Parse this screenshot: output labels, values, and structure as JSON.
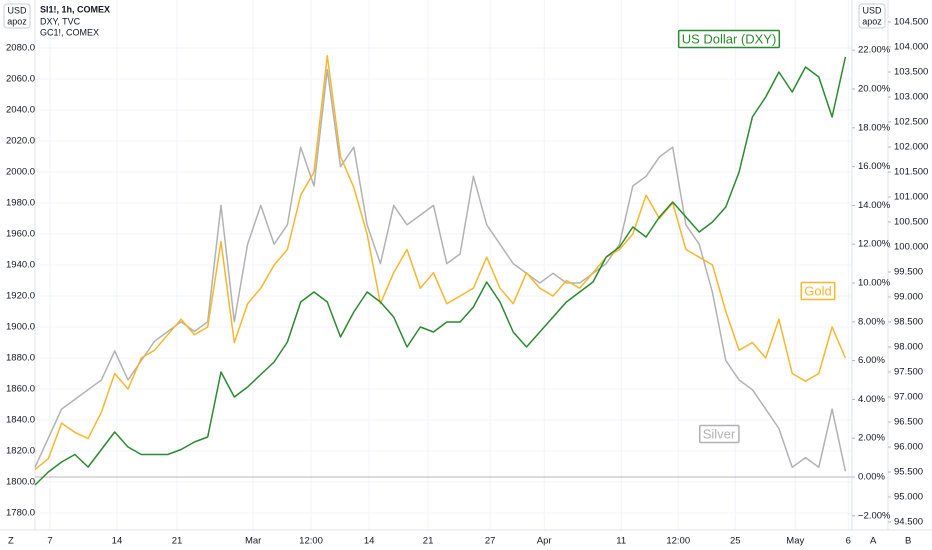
{
  "chart_data": {
    "type": "line",
    "legend_lines": [
      "SI1!, 1h, COMEX",
      "DXY, TVC",
      "GC1!, COMEX"
    ],
    "scale_labels": [
      "USD",
      "apoz"
    ],
    "corner_labels": [
      "Z",
      "A",
      "B"
    ],
    "x": [
      0,
      1,
      2,
      3,
      4,
      5,
      6,
      7,
      8,
      9,
      10,
      11,
      12,
      13,
      14,
      15,
      16,
      17,
      18,
      19,
      20,
      21,
      22,
      23,
      24,
      25,
      26,
      27,
      28,
      29,
      30,
      31,
      32,
      33,
      34,
      35,
      36,
      37,
      38,
      39,
      40,
      41,
      42,
      43,
      44,
      45,
      46,
      47,
      48,
      49,
      50,
      51,
      52,
      53,
      54,
      55,
      56,
      57,
      58,
      59,
      60,
      61
    ],
    "xlim": [
      0,
      61.5
    ],
    "xticks": [
      {
        "value": 1.13,
        "label": "7"
      },
      {
        "value": 6.17,
        "label": "14"
      },
      {
        "value": 10.69,
        "label": "21"
      },
      {
        "value": 16.42,
        "label": "Mar"
      },
      {
        "value": 20.78,
        "label": "12:00"
      },
      {
        "value": 25.15,
        "label": "14"
      },
      {
        "value": 29.59,
        "label": "21"
      },
      {
        "value": 34.26,
        "label": "27"
      },
      {
        "value": 38.33,
        "label": "Apr"
      },
      {
        "value": 44.13,
        "label": "11"
      },
      {
        "value": 48.42,
        "label": "12:00"
      },
      {
        "value": 52.71,
        "label": "25"
      },
      {
        "value": 57.23,
        "label": "May"
      },
      {
        "value": 61.22,
        "label": "6"
      }
    ],
    "ylim": [
      1769,
      2104.5
    ],
    "yticks": [
      {
        "value": 1780,
        "label": "1780.0"
      },
      {
        "value": 1800,
        "label": "1800.0"
      },
      {
        "value": 1820,
        "label": "1820.0"
      },
      {
        "value": 1840,
        "label": "1840.0"
      },
      {
        "value": 1860,
        "label": "1860.0"
      },
      {
        "value": 1880,
        "label": "1880.0"
      },
      {
        "value": 1900,
        "label": "1900.0"
      },
      {
        "value": 1920,
        "label": "1920.0"
      },
      {
        "value": 1940,
        "label": "1940.0"
      },
      {
        "value": 1960,
        "label": "1960.0"
      },
      {
        "value": 1980,
        "label": "1980.0"
      },
      {
        "value": 2000,
        "label": "2000.0"
      },
      {
        "value": 2020,
        "label": "2020.0"
      },
      {
        "value": 2040,
        "label": "2040.0"
      },
      {
        "value": 2060,
        "label": "2060.0"
      },
      {
        "value": 2080,
        "label": "2080.0"
      }
    ],
    "y2lim": [
      -2.73,
      24.07
    ],
    "y2ticks": [
      {
        "value": -2,
        "label": "−2.00%"
      },
      {
        "value": 0,
        "label": "0.00%"
      },
      {
        "value": 2,
        "label": "2.00%"
      },
      {
        "value": 4,
        "label": "4.00%"
      },
      {
        "value": 6,
        "label": "6.00%"
      },
      {
        "value": 8,
        "label": "8.00%"
      },
      {
        "value": 10,
        "label": "10.00%"
      },
      {
        "value": 12,
        "label": "12.00%"
      },
      {
        "value": 14,
        "label": "14.00%"
      },
      {
        "value": 16,
        "label": "16.00%"
      },
      {
        "value": 18,
        "label": "18.00%"
      },
      {
        "value": 20,
        "label": "20.00%"
      },
      {
        "value": 22,
        "label": "22.00%"
      }
    ],
    "y3lim": [
      94.34,
      104.74
    ],
    "y3ticks": [
      {
        "value": 94.5,
        "label": "94.500"
      },
      {
        "value": 95,
        "label": "95.000"
      },
      {
        "value": 95.5,
        "label": "95.500"
      },
      {
        "value": 96,
        "label": "96.000"
      },
      {
        "value": 96.5,
        "label": "96.500"
      },
      {
        "value": 97,
        "label": "97.000"
      },
      {
        "value": 97.5,
        "label": "97.500"
      },
      {
        "value": 98,
        "label": "98.000"
      },
      {
        "value": 98.5,
        "label": "98.500"
      },
      {
        "value": 99,
        "label": "99.000"
      },
      {
        "value": 99.5,
        "label": "99.500"
      },
      {
        "value": 100,
        "label": "100.000"
      },
      {
        "value": 100.5,
        "label": "100.500"
      },
      {
        "value": 101,
        "label": "101.000"
      },
      {
        "value": 101.5,
        "label": "101.500"
      },
      {
        "value": 102,
        "label": "102.000"
      },
      {
        "value": 102.5,
        "label": "102.500"
      },
      {
        "value": 103,
        "label": "103.000"
      },
      {
        "value": 103.5,
        "label": "103.500"
      },
      {
        "value": 104,
        "label": "104.000"
      },
      {
        "value": 104.5,
        "label": "104.500"
      }
    ],
    "grid": true,
    "series": [
      {
        "name": "Silver",
        "color": "#b2b2b2",
        "axis": "y2",
        "values": [
          0.5,
          2,
          3.5,
          4,
          4.5,
          5,
          6.5,
          5,
          6,
          7,
          7.5,
          8,
          7.5,
          8,
          14,
          8,
          12,
          14,
          12,
          13,
          17,
          15,
          21,
          16,
          17,
          13,
          11,
          14,
          13,
          13.5,
          14,
          11,
          11.5,
          15.5,
          13,
          12,
          11,
          10.5,
          10,
          10.5,
          10,
          10,
          10.5,
          11,
          12,
          15,
          15.5,
          16.5,
          17,
          13,
          12,
          9.5,
          6,
          5,
          4.5,
          3.5,
          2.5,
          0.5,
          1,
          0.5,
          3.5,
          0.3
        ]
      },
      {
        "name": "Gold",
        "color": "#f7b62e",
        "axis": "y",
        "values": [
          1808,
          1815,
          1838,
          1832,
          1828,
          1845,
          1870,
          1860,
          1880,
          1885,
          1895,
          1905,
          1895,
          1900,
          1955,
          1890,
          1915,
          1925,
          1940,
          1950,
          1985,
          2000,
          2075,
          2010,
          1990,
          1960,
          1915,
          1935,
          1950,
          1925,
          1935,
          1915,
          1920,
          1925,
          1945,
          1925,
          1915,
          1935,
          1925,
          1920,
          1930,
          1925,
          1935,
          1945,
          1950,
          1960,
          1985,
          1970,
          1980,
          1950,
          1945,
          1940,
          1910,
          1885,
          1890,
          1880,
          1905,
          1870,
          1865,
          1870,
          1900,
          1880
        ]
      },
      {
        "name": "US Dollar (DXY)",
        "color": "#2a8a2e",
        "axis": "y3",
        "values": [
          95.24,
          95.5,
          95.7,
          95.85,
          95.6,
          95.95,
          96.3,
          96.0,
          95.85,
          95.85,
          95.85,
          95.95,
          96.1,
          96.2,
          97.5,
          97.0,
          97.2,
          97.45,
          97.7,
          98.1,
          98.9,
          99.1,
          98.9,
          98.2,
          98.7,
          99.1,
          98.9,
          98.6,
          98.0,
          98.4,
          98.3,
          98.5,
          98.5,
          98.8,
          99.3,
          98.9,
          98.3,
          98.0,
          98.3,
          98.6,
          98.9,
          99.1,
          99.3,
          99.8,
          100.0,
          100.4,
          100.2,
          100.6,
          100.9,
          100.6,
          100.3,
          100.5,
          100.8,
          101.5,
          102.6,
          103.0,
          103.5,
          103.1,
          103.6,
          103.4,
          102.6,
          103.8
        ]
      }
    ]
  }
}
